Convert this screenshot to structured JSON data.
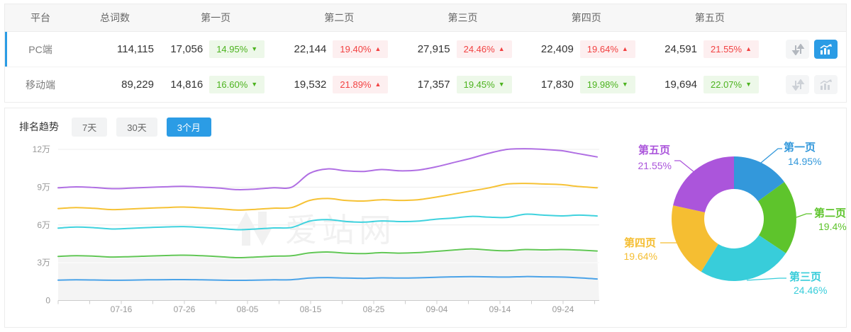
{
  "accent_color": "#2b9ce5",
  "watermark": "爱站网",
  "table": {
    "columns": [
      "平台",
      "总词数",
      "第一页",
      "第二页",
      "第三页",
      "第四页",
      "第五页"
    ],
    "icon_names": [
      "sort-updown-icon",
      "trend-chart-icon"
    ],
    "badge_colors": {
      "down_text": "#4cb31e",
      "down_bg": "#edf8e9",
      "up_text": "#f24242",
      "up_bg": "#fdeff0"
    },
    "rows": [
      {
        "platform": "PC端",
        "total": "114,115",
        "active": true,
        "chart_active": true,
        "pages": [
          {
            "value": "17,056",
            "pct": "14.95%",
            "trend": "down"
          },
          {
            "value": "22,144",
            "pct": "19.40%",
            "trend": "up"
          },
          {
            "value": "27,915",
            "pct": "24.46%",
            "trend": "up"
          },
          {
            "value": "22,409",
            "pct": "19.64%",
            "trend": "up"
          },
          {
            "value": "24,591",
            "pct": "21.55%",
            "trend": "up"
          }
        ]
      },
      {
        "platform": "移动端",
        "total": "89,229",
        "active": false,
        "chart_active": false,
        "pages": [
          {
            "value": "14,816",
            "pct": "16.60%",
            "trend": "down"
          },
          {
            "value": "19,532",
            "pct": "21.89%",
            "trend": "up"
          },
          {
            "value": "17,357",
            "pct": "19.45%",
            "trend": "down"
          },
          {
            "value": "17,830",
            "pct": "19.98%",
            "trend": "down"
          },
          {
            "value": "19,694",
            "pct": "22.07%",
            "trend": "down"
          }
        ]
      }
    ]
  },
  "trend": {
    "title": "排名趋势",
    "tabs": [
      {
        "id": "7days",
        "label": "7天",
        "active": false
      },
      {
        "id": "30days",
        "label": "30天",
        "active": false
      },
      {
        "id": "3months",
        "label": "3个月",
        "active": true
      }
    ]
  },
  "chart_data": [
    {
      "type": "line",
      "title": "排名趋势（3个月）",
      "y_unit": "万",
      "ylim_wan": [
        0,
        12
      ],
      "y_ticks": [
        "0",
        "3万",
        "6万",
        "9万",
        "12万"
      ],
      "y_tick_values_wan": [
        0,
        3,
        6,
        9,
        12
      ],
      "x_tick_labels": [
        "07-16",
        "07-26",
        "08-05",
        "08-15",
        "08-25",
        "09-04",
        "09-14",
        "09-24"
      ],
      "grid": true,
      "stacked_cumulative": true,
      "series": [
        {
          "name": "第一页",
          "color": "#4ba3e8",
          "values_wan": [
            1.62,
            1.64,
            1.63,
            1.61,
            1.62,
            1.64,
            1.65,
            1.66,
            1.64,
            1.62,
            1.6,
            1.62,
            1.64,
            1.65,
            1.78,
            1.82,
            1.78,
            1.76,
            1.8,
            1.78,
            1.8,
            1.84,
            1.88,
            1.9,
            1.88,
            1.86,
            1.9,
            1.88,
            1.86,
            1.8,
            1.71
          ]
        },
        {
          "name": "第二页",
          "color": "#61c655",
          "area_fill": "#f4f4f4",
          "values_wan": [
            3.5,
            3.56,
            3.52,
            3.45,
            3.48,
            3.53,
            3.57,
            3.6,
            3.55,
            3.48,
            3.4,
            3.45,
            3.52,
            3.55,
            3.78,
            3.85,
            3.76,
            3.72,
            3.8,
            3.76,
            3.8,
            3.9,
            4.0,
            4.1,
            4.0,
            3.95,
            4.05,
            4.02,
            4.05,
            4.0,
            3.93
          ]
        },
        {
          "name": "第三页",
          "color": "#3fd2de",
          "values_wan": [
            5.75,
            5.83,
            5.78,
            5.68,
            5.73,
            5.79,
            5.84,
            5.87,
            5.8,
            5.72,
            5.62,
            5.68,
            5.76,
            5.8,
            6.3,
            6.42,
            6.28,
            6.22,
            6.32,
            6.27,
            6.3,
            6.45,
            6.55,
            6.68,
            6.62,
            6.6,
            6.85,
            6.78,
            6.72,
            6.78,
            6.71
          ]
        },
        {
          "name": "第四页",
          "color": "#f6c235",
          "values_wan": [
            7.3,
            7.38,
            7.32,
            7.22,
            7.27,
            7.33,
            7.38,
            7.42,
            7.36,
            7.28,
            7.18,
            7.24,
            7.33,
            7.38,
            7.95,
            8.1,
            7.95,
            7.9,
            8.0,
            7.95,
            8.0,
            8.2,
            8.45,
            8.7,
            8.95,
            9.25,
            9.3,
            9.25,
            9.2,
            9.05,
            8.95
          ]
        },
        {
          "name": "第五页",
          "color": "#b06fe3",
          "values_wan": [
            8.95,
            9.02,
            8.97,
            8.88,
            8.92,
            8.98,
            9.03,
            9.06,
            9.0,
            8.92,
            8.8,
            8.85,
            8.95,
            9.0,
            10.1,
            10.45,
            10.3,
            10.25,
            10.4,
            10.3,
            10.35,
            10.6,
            10.95,
            11.3,
            11.7,
            12.0,
            12.05,
            12.0,
            11.9,
            11.65,
            11.4
          ]
        }
      ]
    },
    {
      "type": "pie",
      "donut": true,
      "items": [
        {
          "label": "第一页",
          "pct": 14.95,
          "display": "14.95%",
          "color": "#3398db"
        },
        {
          "label": "第二页",
          "pct": 19.4,
          "display": "19.4%",
          "color": "#5ec42c"
        },
        {
          "label": "第三页",
          "pct": 24.46,
          "display": "24.46%",
          "color": "#38cdda"
        },
        {
          "label": "第四页",
          "pct": 19.64,
          "display": "19.64%",
          "color": "#f5be32"
        },
        {
          "label": "第五页",
          "pct": 21.55,
          "display": "21.55%",
          "color": "#ab55db"
        }
      ]
    }
  ]
}
